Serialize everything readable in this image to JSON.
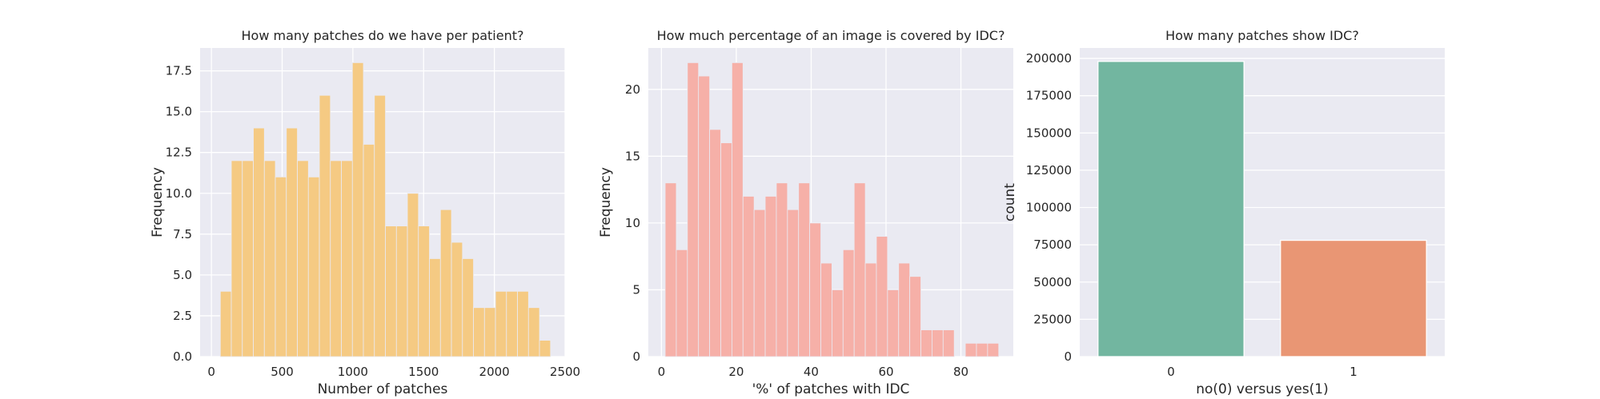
{
  "chart_data": [
    {
      "type": "bar",
      "title": "How many patches do we have per patient?",
      "xlabel": "Number of patches",
      "ylabel": "Frequency",
      "xlim": [
        -80,
        2500
      ],
      "ylim": [
        0,
        18.9
      ],
      "xticks": [
        0,
        500,
        1000,
        1500,
        2000,
        2500
      ],
      "yticks": [
        0.0,
        2.5,
        5.0,
        7.5,
        10.0,
        12.5,
        15.0,
        17.5
      ],
      "ytick_labels": [
        "0.0",
        "2.5",
        "5.0",
        "7.5",
        "10.0",
        "12.5",
        "15.0",
        "17.5"
      ],
      "bin_start": 63,
      "bin_width": 77.8,
      "values": [
        4,
        12,
        12,
        14,
        12,
        11,
        14,
        12,
        11,
        16,
        12,
        12,
        18,
        13,
        16,
        8,
        8,
        10,
        8,
        6,
        9,
        7,
        6,
        3,
        3,
        4,
        4,
        4,
        3,
        1
      ],
      "color": "#f5ca83",
      "edge_color": "#eaeaf2",
      "grid": true,
      "background": "#eaeaf2"
    },
    {
      "type": "bar",
      "title": "How much percentage of an image is covered by IDC?",
      "xlabel": "'%' of patches with IDC",
      "ylabel": "Frequency",
      "xlim": [
        -3.5,
        94
      ],
      "ylim": [
        0,
        23.1
      ],
      "xticks": [
        0,
        20,
        40,
        60,
        80
      ],
      "yticks": [
        0,
        5,
        10,
        15,
        20
      ],
      "ytick_labels": [
        "0",
        "5",
        "10",
        "15",
        "20"
      ],
      "bin_start": 1,
      "bin_width": 2.97,
      "values": [
        13,
        8,
        22,
        21,
        17,
        16,
        22,
        12,
        11,
        12,
        13,
        11,
        13,
        10,
        7,
        5,
        8,
        13,
        7,
        9,
        5,
        7,
        6,
        2,
        2,
        2,
        0,
        1,
        1,
        1
      ],
      "color": "#f6b0a8",
      "edge_color": "#eaeaf2",
      "grid": true,
      "background": "#eaeaf2"
    },
    {
      "type": "bar",
      "title": "How many patches show IDC?",
      "xlabel": "no(0) versus yes(1)",
      "ylabel": "count",
      "categories": [
        "0",
        "1"
      ],
      "values": [
        198000,
        78000
      ],
      "colors": [
        "#72b6a0",
        "#e99674"
      ],
      "ylim": [
        0,
        207000
      ],
      "yticks": [
        0,
        25000,
        50000,
        75000,
        100000,
        125000,
        150000,
        175000,
        200000
      ],
      "ytick_labels": [
        "0",
        "25000",
        "50000",
        "75000",
        "100000",
        "125000",
        "150000",
        "175000",
        "200000"
      ],
      "grid": true,
      "background": "#eaeaf2"
    }
  ]
}
